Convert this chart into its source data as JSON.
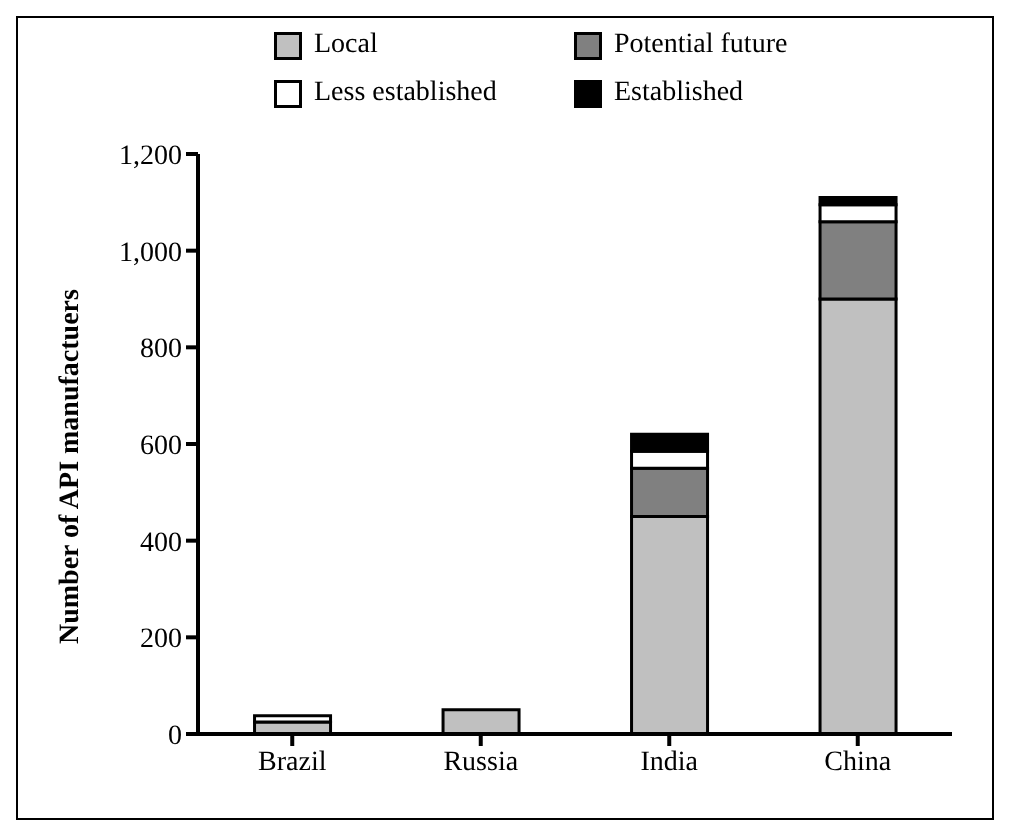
{
  "chart_data": {
    "type": "bar",
    "stacked": true,
    "ylabel": "Number of API manufactuers",
    "categories": [
      "Brazil",
      "Russia",
      "India",
      "China"
    ],
    "series": [
      {
        "name": "Local",
        "color": "#c0c0c0",
        "values": [
          25,
          50,
          450,
          900
        ]
      },
      {
        "name": "Potential future",
        "color": "#808080",
        "values": [
          0,
          0,
          100,
          160
        ]
      },
      {
        "name": "Less established",
        "color": "#ffffff",
        "values": [
          13,
          0,
          35,
          35
        ]
      },
      {
        "name": "Established",
        "color": "#000000",
        "values": [
          0,
          0,
          35,
          15
        ]
      }
    ],
    "ylim": [
      0,
      1200
    ],
    "yticks": [
      0,
      {
        "value": 200,
        "label": "200"
      },
      {
        "value": 400,
        "label": "400"
      },
      {
        "value": 600,
        "label": "600"
      },
      {
        "value": 800,
        "label": "800"
      },
      {
        "value": 1000,
        "label": "1,000"
      },
      {
        "value": 1200,
        "label": "1,200"
      }
    ],
    "grid": false,
    "legend": "top"
  }
}
